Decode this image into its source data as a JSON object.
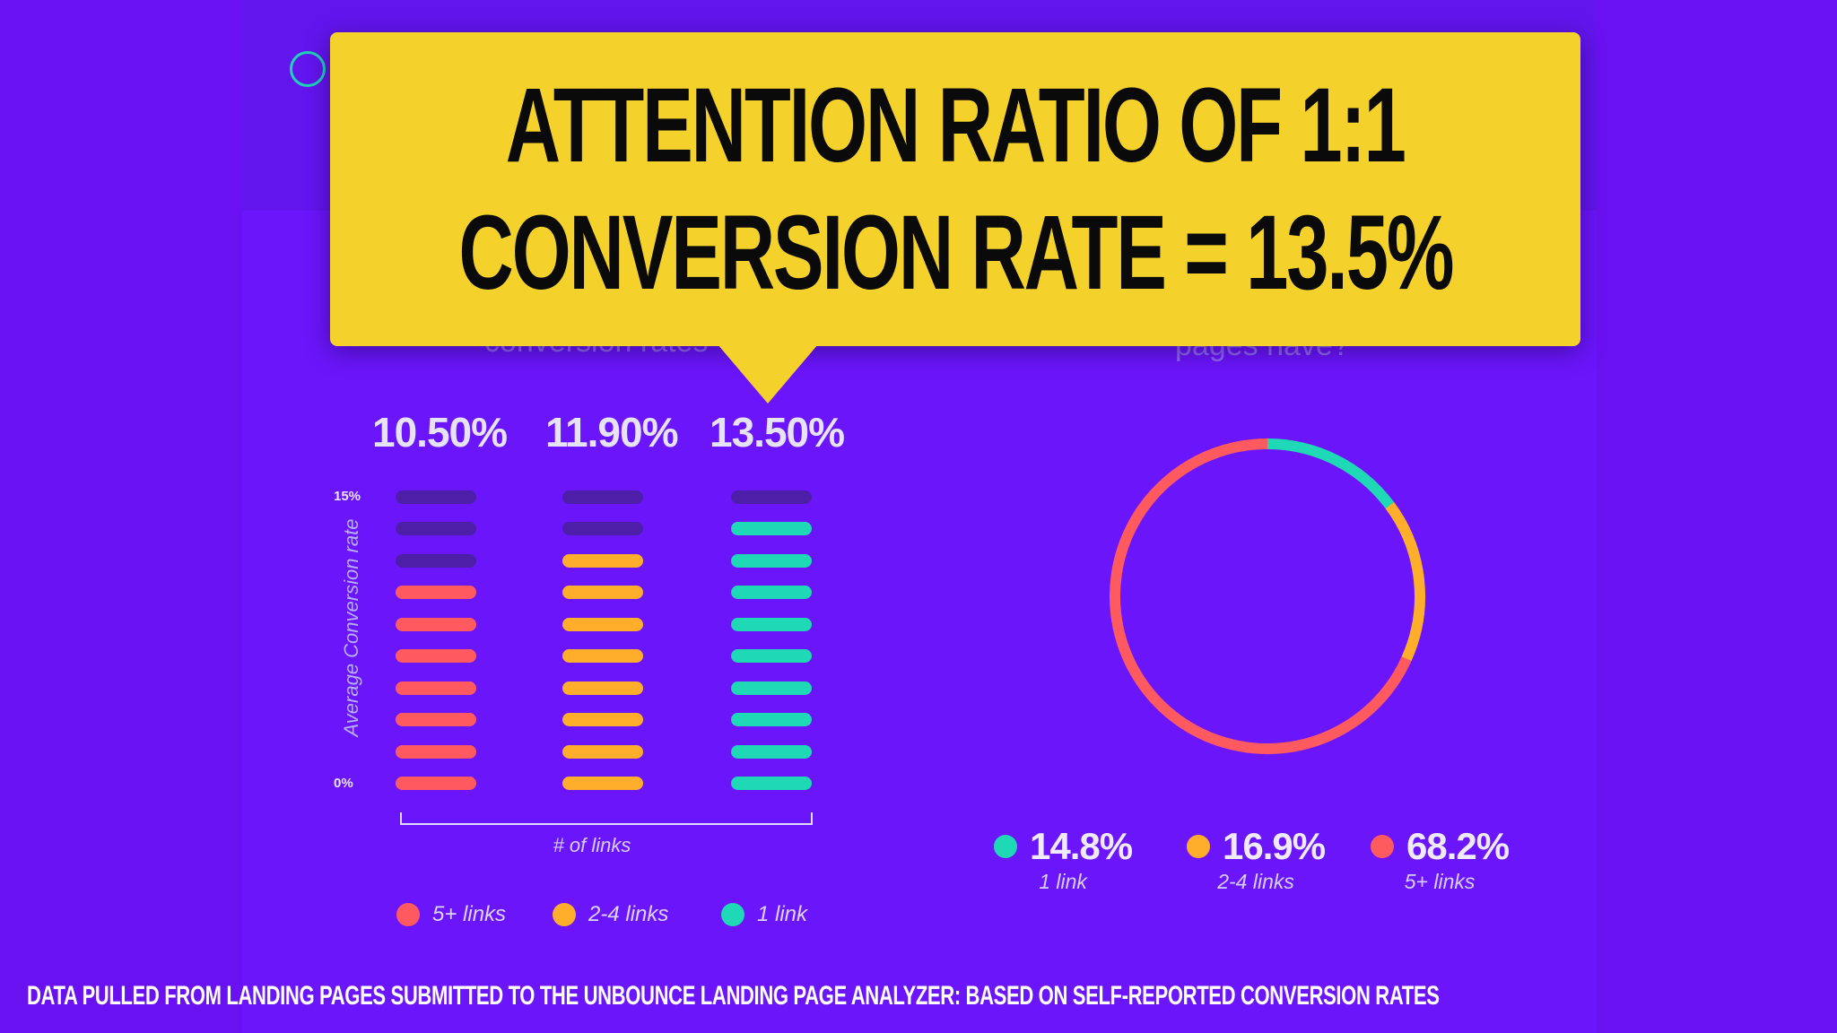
{
  "callout": {
    "line1": "Attention ratio of 1:1",
    "line2": "Conversion rate = 13.5%"
  },
  "background_text": {
    "left_partial": "conversion rates",
    "right_partial": "pages have?"
  },
  "footnote": "Data pulled from landing pages submitted to the Unbounce Landing Page Analyzer: Based on self-reported conversion rates",
  "colors": {
    "background": "#6a11f2",
    "callout": "#f4d22b",
    "five_plus": "#ff5a5f",
    "two_to_four": "#ffae2b",
    "one_link": "#1fd8b6",
    "empty_segment": "#4d1fa8"
  },
  "chart_data": [
    {
      "type": "bar",
      "categories": [
        "5+ links",
        "2-4 links",
        "1 link"
      ],
      "values": [
        10.5,
        11.9,
        13.5
      ],
      "value_labels": [
        "10.50%",
        "11.90%",
        "13.50%"
      ],
      "ylabel": "Average Conversion rate",
      "xlabel": "# of links",
      "ylim": [
        0,
        15
      ],
      "y_tick_labels": [
        "15%",
        "0%"
      ],
      "segments_total": 10,
      "filled_segments": [
        7,
        8,
        9
      ],
      "legend": [
        "5+ links",
        "2-4 links",
        "1 link"
      ],
      "legend_placement": "bottom"
    },
    {
      "type": "pie",
      "style": "donut",
      "categories": [
        "1 link",
        "2-4 links",
        "5+ links"
      ],
      "values": [
        14.8,
        16.9,
        68.2
      ],
      "value_labels": [
        "14.8%",
        "16.9%",
        "68.2%"
      ],
      "legend_placement": "bottom"
    }
  ]
}
